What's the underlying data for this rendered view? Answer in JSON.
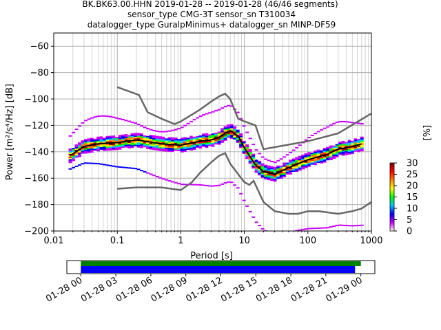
{
  "title": {
    "line1": "BK.BK63.00.HHN   2019-01-28 -- 2019-01-28  (46/46 segments)",
    "line2": "sensor_type CMG-3T sensor_sn T310034",
    "line3": "datalogger_type GuralpMinimus+ datalogger_sn MINP-DF59"
  },
  "chart_data": [
    {
      "type": "heatmap",
      "description_kind": "probabilistic power spectral density",
      "xlabel": "Period [s]",
      "ylabel": "Power [m²/s⁴/Hz] [dB]",
      "xscale": "log",
      "xlim": [
        0.01,
        1000
      ],
      "ylim": [
        -200,
        -50
      ],
      "xticks": [
        "0.01",
        "0.1",
        "1",
        "10",
        "100",
        "1000"
      ],
      "yticks": [
        "−60",
        "−80",
        "−100",
        "−120",
        "−140",
        "−160",
        "−180",
        "−200"
      ],
      "grid": true,
      "colorbar": {
        "label": "[%]",
        "range": [
          0,
          30
        ],
        "ticks": [
          "0",
          "5",
          "10",
          "15",
          "20",
          "25",
          "30"
        ],
        "colors": [
          "#ffffff",
          "#cc00ff",
          "#0000ff",
          "#00c8ff",
          "#00ff00",
          "#ffff00",
          "#ff8000",
          "#ff0000",
          "#8b0000"
        ]
      },
      "mean_curve": {
        "name": "mean",
        "color": "#000000",
        "period": [
          0.018,
          0.03,
          0.05,
          0.1,
          0.2,
          0.5,
          1,
          2,
          3,
          4,
          5,
          6,
          8,
          10,
          15,
          20,
          30,
          50,
          100,
          200,
          300,
          500,
          700
        ],
        "power": [
          -143,
          -136,
          -134,
          -133,
          -131,
          -134,
          -135,
          -132,
          -131,
          -129,
          -126,
          -124,
          -128,
          -137,
          -150,
          -155,
          -157,
          -152,
          -146,
          -142,
          -138,
          -136,
          -134
        ]
      },
      "noise_models": [
        {
          "name": "NHNM",
          "color": "#666666",
          "period": [
            0.1,
            0.22,
            0.3,
            0.5,
            0.8,
            1,
            2,
            3,
            4,
            5,
            6,
            8,
            10,
            15,
            20,
            100,
            300,
            1000
          ],
          "power": [
            -91,
            -97,
            -110,
            -115,
            -119,
            -117,
            -108,
            -102,
            -98,
            -96,
            -100,
            -115,
            -117,
            -120,
            -138,
            -132,
            -126,
            -111
          ]
        },
        {
          "name": "NLNM",
          "color": "#666666",
          "period": [
            0.1,
            0.2,
            0.5,
            1,
            1.5,
            2,
            3,
            4,
            5,
            6,
            8,
            10,
            12,
            14,
            20,
            30,
            50,
            70,
            100,
            150,
            300,
            500,
            700,
            1000
          ],
          "power": [
            -168,
            -167,
            -167,
            -169,
            -163,
            -156,
            -148,
            -143,
            -141,
            -149,
            -157,
            -163,
            -165,
            -162,
            -178,
            -185,
            -187,
            -187,
            -185,
            -185,
            -187,
            -185,
            -183,
            -178
          ]
        }
      ]
    },
    {
      "type": "bar",
      "description_kind": "data availability timeline",
      "xticks": [
        "01-28 00",
        "01-28 03",
        "01-28 06",
        "01-28 09",
        "01-28 12",
        "01-28 15",
        "01-28 18",
        "01-28 21",
        "01-29 00"
      ],
      "xlim_hours": [
        -1.2,
        25.2
      ],
      "bars": [
        {
          "row": "upper",
          "color": "#008000",
          "start_hour": 0.0,
          "end_hour": 24.0
        },
        {
          "row": "lower",
          "color": "#0000ff",
          "start_hour": 0.0,
          "end_hour": 23.5
        }
      ]
    }
  ]
}
